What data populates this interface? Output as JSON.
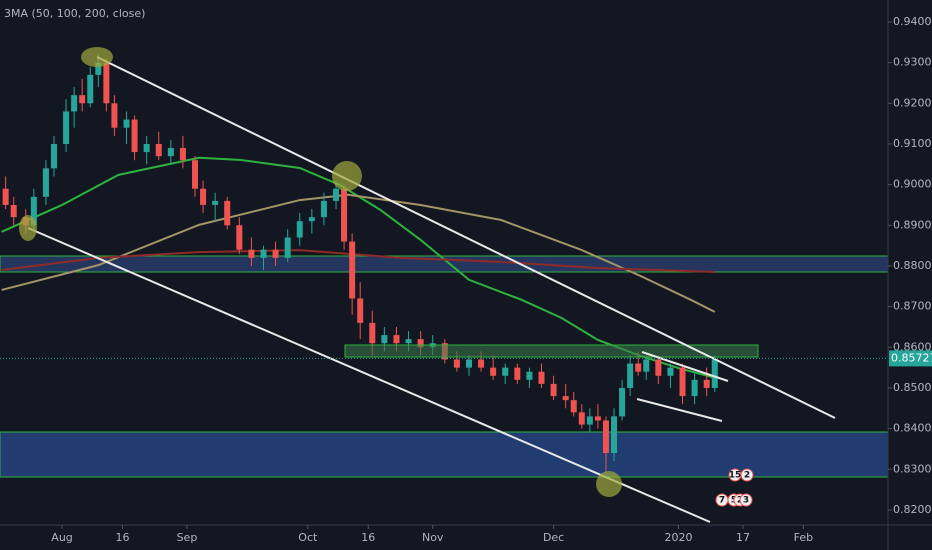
{
  "chart_data": {
    "type": "candlestick",
    "title": "3MA (50, 100, 200, close)",
    "xlim": [
      -15.4,
      205
    ],
    "ylim": [
      0.8163,
      0.9454
    ],
    "xticks": [
      {
        "value": 0,
        "label": "Aug"
      },
      {
        "value": 15,
        "label": "16"
      },
      {
        "value": 31,
        "label": "Sep"
      },
      {
        "value": 61,
        "label": "Oct"
      },
      {
        "value": 76,
        "label": "16"
      },
      {
        "value": 92,
        "label": "Nov"
      },
      {
        "value": 122,
        "label": "Dec"
      },
      {
        "value": 153,
        "label": "2020"
      },
      {
        "value": 169,
        "label": "17"
      },
      {
        "value": 184,
        "label": "Feb"
      }
    ],
    "yticks": [
      {
        "value": 0.94,
        "label": "0.94000"
      },
      {
        "value": 0.93,
        "label": "0.93000"
      },
      {
        "value": 0.92,
        "label": "0.92000"
      },
      {
        "value": 0.91,
        "label": "0.91000"
      },
      {
        "value": 0.9,
        "label": "0.90000"
      },
      {
        "value": 0.89,
        "label": "0.89000"
      },
      {
        "value": 0.88,
        "label": "0.88000"
      },
      {
        "value": 0.87,
        "label": "0.87000"
      },
      {
        "value": 0.86,
        "label": "0.86000"
      },
      {
        "value": 0.85,
        "label": "0.85000"
      },
      {
        "value": 0.84,
        "label": "0.84000"
      },
      {
        "value": 0.83,
        "label": "0.83000"
      },
      {
        "value": 0.82,
        "label": "0.82000"
      }
    ],
    "last_price": 0.85727,
    "up_color": "#26a69a",
    "down_color": "#ef5350",
    "x": [
      -14,
      -12,
      -9,
      -7,
      -4,
      -2,
      1,
      3,
      5,
      7,
      9,
      11,
      13,
      16,
      18,
      21,
      24,
      27,
      30,
      33,
      35,
      38,
      41,
      44,
      47,
      50,
      53,
      56,
      59,
      62,
      65,
      68,
      70,
      72,
      74,
      77,
      80,
      83,
      86,
      89,
      92,
      95,
      98,
      101,
      104,
      107,
      110,
      113,
      116,
      119,
      122,
      125,
      127,
      129,
      131,
      133,
      135,
      137,
      139,
      141,
      143,
      145,
      148,
      151,
      154,
      157,
      160,
      162
    ],
    "open": [
      0.899,
      0.895,
      0.892,
      0.89,
      0.897,
      0.904,
      0.91,
      0.918,
      0.922,
      0.92,
      0.927,
      0.93,
      0.92,
      0.914,
      0.916,
      0.908,
      0.91,
      0.907,
      0.909,
      0.906,
      0.899,
      0.895,
      0.896,
      0.89,
      0.884,
      0.882,
      0.884,
      0.882,
      0.887,
      0.891,
      0.892,
      0.896,
      0.899,
      0.886,
      0.872,
      0.866,
      0.861,
      0.863,
      0.861,
      0.862,
      0.86,
      0.861,
      0.857,
      0.855,
      0.857,
      0.855,
      0.853,
      0.855,
      0.852,
      0.854,
      0.851,
      0.848,
      0.847,
      0.844,
      0.841,
      0.843,
      0.842,
      0.834,
      0.843,
      0.85,
      0.856,
      0.854,
      0.857,
      0.853,
      0.855,
      0.848,
      0.852,
      0.85
    ],
    "high": [
      0.902,
      0.897,
      0.894,
      0.899,
      0.906,
      0.912,
      0.921,
      0.924,
      0.926,
      0.929,
      0.932,
      0.931,
      0.922,
      0.918,
      0.917,
      0.912,
      0.913,
      0.911,
      0.912,
      0.907,
      0.901,
      0.898,
      0.897,
      0.892,
      0.887,
      0.885,
      0.886,
      0.889,
      0.893,
      0.894,
      0.898,
      0.901,
      0.9,
      0.888,
      0.876,
      0.869,
      0.865,
      0.865,
      0.864,
      0.864,
      0.863,
      0.862,
      0.859,
      0.858,
      0.859,
      0.858,
      0.856,
      0.856,
      0.855,
      0.856,
      0.853,
      0.851,
      0.849,
      0.846,
      0.845,
      0.846,
      0.843,
      0.845,
      0.852,
      0.858,
      0.859,
      0.858,
      0.858,
      0.856,
      0.856,
      0.854,
      0.855,
      0.858
    ],
    "low": [
      0.894,
      0.89,
      0.888,
      0.889,
      0.895,
      0.902,
      0.908,
      0.914,
      0.918,
      0.919,
      0.924,
      0.918,
      0.912,
      0.91,
      0.906,
      0.905,
      0.906,
      0.905,
      0.904,
      0.897,
      0.893,
      0.891,
      0.889,
      0.883,
      0.88,
      0.879,
      0.88,
      0.881,
      0.885,
      0.888,
      0.89,
      0.894,
      0.884,
      0.868,
      0.862,
      0.858,
      0.859,
      0.859,
      0.859,
      0.858,
      0.858,
      0.856,
      0.854,
      0.853,
      0.854,
      0.852,
      0.851,
      0.851,
      0.85,
      0.85,
      0.847,
      0.845,
      0.843,
      0.84,
      0.839,
      0.84,
      0.829,
      0.832,
      0.842,
      0.848,
      0.853,
      0.852,
      0.851,
      0.85,
      0.846,
      0.846,
      0.848,
      0.849
    ],
    "close": [
      0.895,
      0.892,
      0.89,
      0.897,
      0.904,
      0.91,
      0.918,
      0.922,
      0.92,
      0.927,
      0.93,
      0.92,
      0.914,
      0.916,
      0.908,
      0.91,
      0.907,
      0.909,
      0.906,
      0.899,
      0.895,
      0.896,
      0.89,
      0.884,
      0.882,
      0.884,
      0.882,
      0.887,
      0.891,
      0.892,
      0.896,
      0.899,
      0.886,
      0.872,
      0.866,
      0.861,
      0.863,
      0.861,
      0.862,
      0.86,
      0.861,
      0.857,
      0.855,
      0.857,
      0.855,
      0.853,
      0.855,
      0.852,
      0.854,
      0.851,
      0.848,
      0.847,
      0.844,
      0.841,
      0.843,
      0.842,
      0.834,
      0.843,
      0.85,
      0.856,
      0.854,
      0.857,
      0.853,
      0.855,
      0.848,
      0.852,
      0.85,
      0.857
    ],
    "series": [
      {
        "color": "#2db33d",
        "x": [
          -15,
          0,
          14,
          34,
          44,
          59,
          69,
          79,
          89,
          101,
          114,
          124,
          133,
          143,
          153,
          162
        ],
        "values": [
          0.8884,
          0.895,
          0.9024,
          0.9066,
          0.9061,
          0.9041,
          0.8999,
          0.8938,
          0.8864,
          0.8766,
          0.8717,
          0.8672,
          0.8618,
          0.8581,
          0.8549,
          0.8525
        ]
      },
      {
        "color": "#a39565",
        "x": [
          -15,
          9,
          34,
          59,
          71,
          89,
          109,
          129,
          143,
          156,
          162
        ],
        "values": [
          0.8741,
          0.8802,
          0.8901,
          0.8962,
          0.8975,
          0.895,
          0.8913,
          0.8839,
          0.8778,
          0.8717,
          0.8687
        ]
      },
      {
        "color": "#8e2a2a",
        "x": [
          -15,
          9,
          34,
          59,
          84,
          109,
          133,
          162
        ],
        "values": [
          0.879,
          0.882,
          0.8834,
          0.8839,
          0.882,
          0.881,
          0.8795,
          0.8785
        ]
      }
    ],
    "events": [
      "15",
      "2",
      "7",
      "5",
      "2",
      "3"
    ]
  }
}
